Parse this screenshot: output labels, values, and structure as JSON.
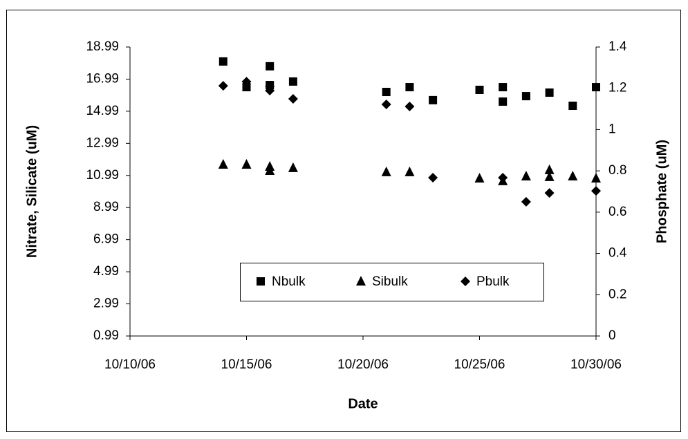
{
  "chart_data": {
    "type": "scatter",
    "xlabel": "Date",
    "ylabel": "Nitrate, Silicate (uM)",
    "y2label": "Phosphate (uM)",
    "xlim": [
      "10/10/06",
      "10/30/06"
    ],
    "xticks": [
      "10/10/06",
      "10/15/06",
      "10/20/06",
      "10/25/06",
      "10/30/06"
    ],
    "ylim": [
      0.99,
      18.99
    ],
    "yticks": [
      0.99,
      2.99,
      4.99,
      6.99,
      8.99,
      10.99,
      12.99,
      14.99,
      16.99,
      18.99
    ],
    "y2lim": [
      0,
      1.4
    ],
    "y2ticks": [
      0,
      0.2,
      0.4,
      0.6,
      0.8,
      1,
      1.2,
      1.4
    ],
    "series": [
      {
        "name": "Nbulk",
        "color": "#000000",
        "marker": "square",
        "x": [
          "10/14/06",
          "10/15/06",
          "10/16/06",
          "10/16/06",
          "10/17/06",
          "10/21/06",
          "10/22/06",
          "10/23/06",
          "10/25/06",
          "10/26/06",
          "10/26/06",
          "10/27/06",
          "10/28/06",
          "10/29/06",
          "10/30/06"
        ],
        "values": [
          18.09,
          16.49,
          17.79,
          16.62,
          16.84,
          16.19,
          16.49,
          15.68,
          16.32,
          16.49,
          15.59,
          15.93,
          16.15,
          15.33,
          16.49
        ]
      },
      {
        "name": "Sibulk",
        "color": "#000000",
        "marker": "triangle",
        "x": [
          "10/14/06",
          "10/15/06",
          "10/16/06",
          "10/16/06",
          "10/17/06",
          "10/21/06",
          "10/22/06",
          "10/25/06",
          "10/26/06",
          "10/27/06",
          "10/28/06",
          "10/28/06",
          "10/29/06",
          "10/30/06"
        ],
        "values": [
          11.67,
          11.67,
          11.54,
          11.28,
          11.46,
          11.2,
          11.2,
          10.81,
          10.64,
          10.94,
          11.33,
          10.9,
          10.94,
          10.81
        ]
      },
      {
        "name": "Pbulk",
        "color": "#000000",
        "marker": "diamond",
        "axis": "y2",
        "x": [
          "10/14/06",
          "10/15/06",
          "10/16/06",
          "10/16/06",
          "10/17/06",
          "10/21/06",
          "10/22/06",
          "10/23/06",
          "10/26/06",
          "10/27/06",
          "10/28/06",
          "10/30/06"
        ],
        "values": [
          1.212,
          1.232,
          1.209,
          1.189,
          1.149,
          1.122,
          1.112,
          0.767,
          0.767,
          0.65,
          0.693,
          0.703
        ]
      }
    ]
  }
}
